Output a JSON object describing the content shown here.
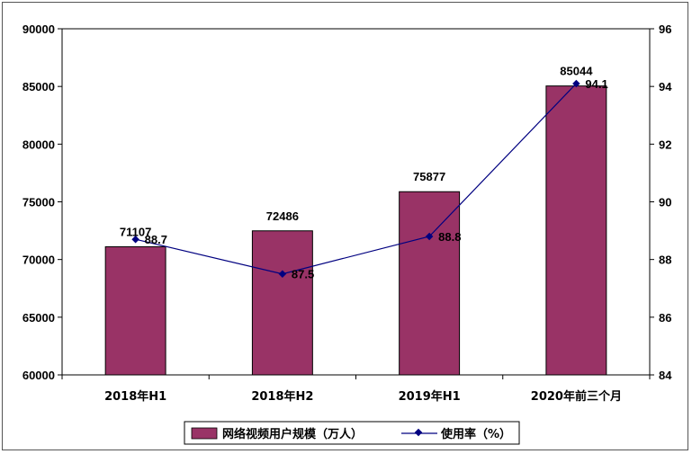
{
  "chart_data": {
    "type": "bar",
    "categories": [
      "2018年H1",
      "2018年H2",
      "2019年H1",
      "2020年前三个月"
    ],
    "series": [
      {
        "name": "网络视频用户规模（万人）",
        "type": "bar",
        "axis": "left",
        "values": [
          71107,
          72486,
          75877,
          85044
        ],
        "color": "#993366"
      },
      {
        "name": "使用率（%）",
        "type": "line",
        "axis": "right",
        "values": [
          88.7,
          87.5,
          88.8,
          94.1
        ],
        "color": "#000080"
      }
    ],
    "y_left": {
      "min": 60000,
      "max": 90000,
      "step": 5000
    },
    "y_right": {
      "min": 84,
      "max": 96,
      "step": 2
    },
    "grid": false,
    "legend_position": "bottom"
  }
}
